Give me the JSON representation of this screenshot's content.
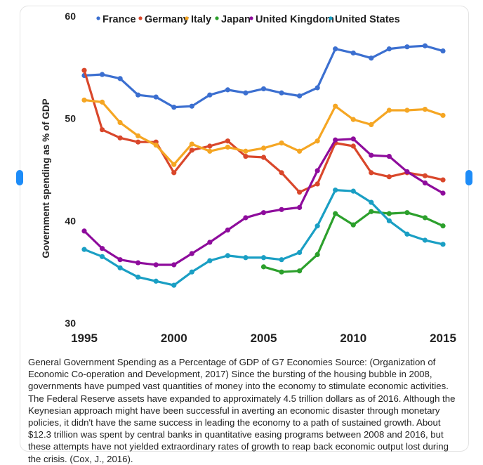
{
  "nav": {
    "prev_icon": "chevron-left-icon",
    "next_icon": "chevron-right-icon",
    "accent": "#1d8cf8"
  },
  "chart_data": {
    "type": "line",
    "title": "",
    "xlabel": "",
    "ylabel": "Government spending as % of GDP",
    "xlim": [
      1995,
      2015
    ],
    "ylim": [
      30,
      60
    ],
    "xticks": [
      "1995",
      "2000",
      "2005",
      "2010",
      "2015"
    ],
    "yticks": [
      "30",
      "40",
      "50",
      "60"
    ],
    "grid": false,
    "legend": "top",
    "x": [
      1995,
      1996,
      1997,
      1998,
      1999,
      2000,
      2001,
      2002,
      2003,
      2004,
      2005,
      2006,
      2007,
      2008,
      2009,
      2010,
      2011,
      2012,
      2013,
      2014,
      2015
    ],
    "series": [
      {
        "name": "France",
        "color": "#3b6fd0",
        "values": [
          54.2,
          54.3,
          53.9,
          52.3,
          52.1,
          51.1,
          51.2,
          52.3,
          52.8,
          52.5,
          52.9,
          52.5,
          52.2,
          53.0,
          56.8,
          56.4,
          55.9,
          56.8,
          57.0,
          57.1,
          56.6
        ]
      },
      {
        "name": "Germany",
        "color": "#d9472b",
        "values": [
          54.7,
          48.9,
          48.1,
          47.7,
          47.7,
          44.7,
          46.9,
          47.3,
          47.8,
          46.3,
          46.2,
          44.7,
          42.8,
          43.6,
          47.6,
          47.3,
          44.7,
          44.3,
          44.7,
          44.4,
          44.0
        ]
      },
      {
        "name": "Italy",
        "color": "#f5a623",
        "values": [
          51.8,
          51.6,
          49.6,
          48.3,
          47.4,
          45.5,
          47.5,
          46.8,
          47.2,
          46.8,
          47.1,
          47.6,
          46.8,
          47.8,
          51.2,
          49.9,
          49.4,
          50.8,
          50.8,
          50.9,
          50.3
        ]
      },
      {
        "name": "Japan",
        "color": "#2ca02c",
        "values": [
          null,
          null,
          null,
          null,
          null,
          null,
          null,
          null,
          null,
          null,
          35.5,
          35.0,
          35.1,
          36.7,
          40.7,
          39.6,
          40.9,
          40.7,
          40.8,
          40.3,
          39.5
        ]
      },
      {
        "name": "United Kingdom",
        "color": "#8e0c9c",
        "values": [
          39.0,
          37.3,
          36.2,
          35.9,
          35.7,
          35.7,
          36.8,
          37.9,
          39.1,
          40.3,
          40.8,
          41.1,
          41.3,
          44.9,
          47.9,
          48.0,
          46.4,
          46.3,
          44.8,
          43.7,
          42.7
        ]
      },
      {
        "name": "United States",
        "color": "#1a9fc4",
        "values": [
          37.2,
          36.5,
          35.4,
          34.5,
          34.1,
          33.7,
          35.0,
          36.1,
          36.6,
          36.4,
          36.4,
          36.2,
          36.9,
          39.5,
          43.0,
          42.9,
          41.8,
          40.0,
          38.7,
          38.1,
          37.7
        ]
      }
    ]
  },
  "caption": "General Government Spending as a Percentage of GDP of G7 Economies Source: (Organization of Economic Co-operation and Development, 2017) Since the bursting of the housing bubble in 2008, governments have pumped vast quantities of money into the economy to stimulate economic activities. The Federal Reserve assets have expanded to approximately 4.5 trillion dollars as of 2016. Although the Keynesian approach might have been successful in averting an economic disaster through monetary policies, it didn't have the same success in leading the economy to a path of sustained growth. About $12.3 trillion was spent by central banks in quantitative easing programs between 2008 and 2016, but these attempts have not yielded extraordinary rates of growth to reap back economic output lost during the crisis. (Cox, J., 2016)."
}
